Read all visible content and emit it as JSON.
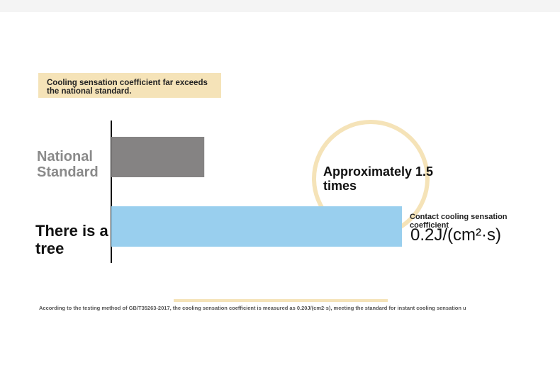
{
  "chart_data": {
    "type": "bar",
    "orientation": "horizontal",
    "title": "Cooling sensation coefficient far exceeds the national standard.",
    "categories": [
      "National Standard",
      "There is a tree"
    ],
    "values": [
      0.064,
      0.2
    ],
    "value_labels": [
      null,
      "0.2J/(cm²·s)"
    ],
    "colors": [
      "#858383",
      "#99cfee"
    ],
    "xlim": [
      0,
      0.2
    ],
    "annotations": [
      "Approximately 1.5 times",
      "Contact cooling sensation coefficient"
    ],
    "footnote": "According to the testing method of GB/T35263-2017, the cooling sensation coefficient is measured as 0.20J/(cm2·s), meeting the standard for instant cooling sensation u"
  }
}
